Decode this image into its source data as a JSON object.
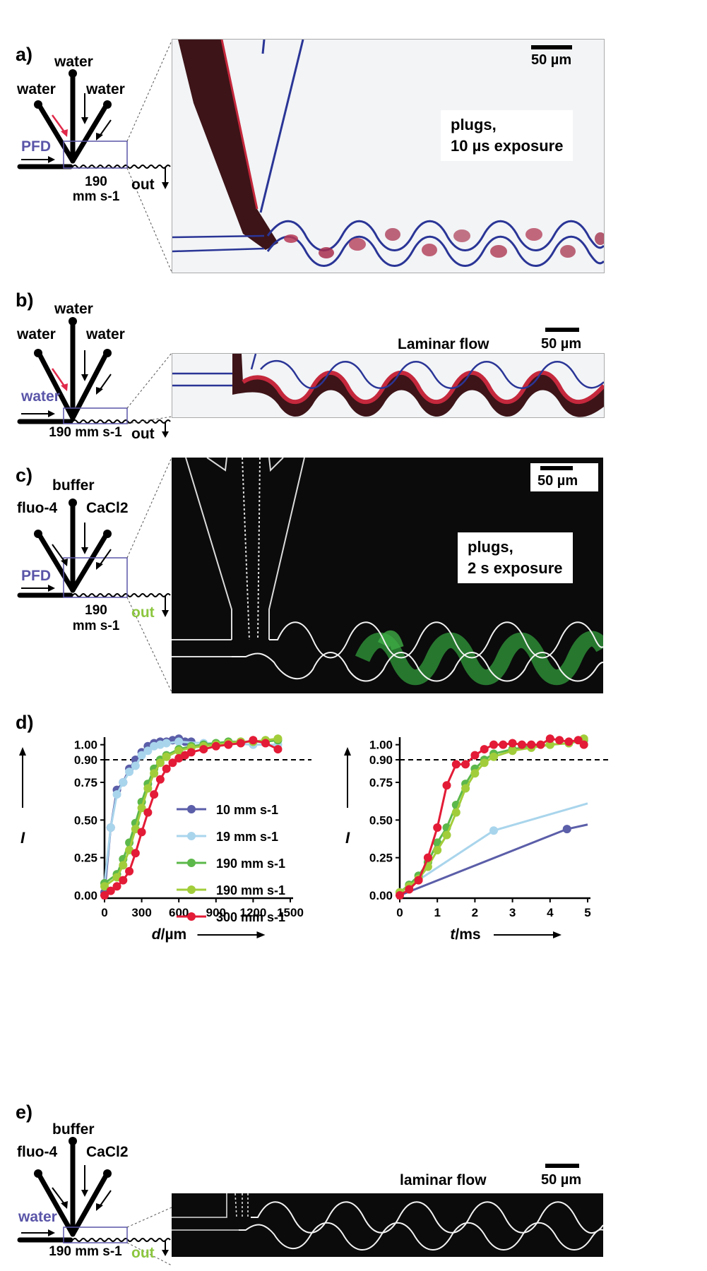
{
  "panels": {
    "a": {
      "letter": "a)",
      "top_inlet": "water",
      "left_inlet": "water",
      "right_inlet": "water",
      "carrier": "PFD",
      "speed_line1": "190",
      "speed_line2": "mm s-1",
      "outlet": "out",
      "scale": "50 µm",
      "note_line1": "plugs,",
      "note_line2": "10 µs exposure"
    },
    "b": {
      "letter": "b)",
      "top_inlet": "water",
      "left_inlet": "water",
      "right_inlet": "water",
      "carrier": "water",
      "speed": "190 mm s-1",
      "outlet": "out",
      "title": "Laminar flow",
      "scale": "50 µm"
    },
    "c": {
      "letter": "c)",
      "top_inlet": "buffer",
      "left_inlet": "fluo-4",
      "right_inlet": "CaCl2",
      "carrier": "PFD",
      "speed_line1": "190",
      "speed_line2": "mm s-1",
      "outlet": "out",
      "scale": "50 µm",
      "note_line1": "plugs,",
      "note_line2": "2 s exposure"
    },
    "d": {
      "letter": "d)"
    },
    "e": {
      "letter": "e)",
      "top_inlet": "buffer",
      "left_inlet": "fluo-4",
      "right_inlet": "CaCl2",
      "carrier": "water",
      "speed": "190 mm s-1",
      "outlet": "out",
      "title": "laminar flow",
      "scale": "50 µm"
    }
  },
  "colors": {
    "carrier_label": "#5a55a8",
    "out_green": "#8cc63f",
    "s10": "#5b5ea8",
    "s19": "#a9d5ec",
    "s190a": "#5cb84a",
    "s190b": "#a2cd3a",
    "s300": "#e31b36",
    "inlet_arrow_red": "#e0294a"
  },
  "chart_data": [
    {
      "type": "line",
      "title": "",
      "xlabel": "d/µm",
      "ylabel": "I",
      "xlim": [
        0,
        1500
      ],
      "ylim": [
        0,
        1.05
      ],
      "xticks": [
        "0",
        "300",
        "600",
        "900",
        "1200",
        "1500"
      ],
      "yticks": [
        "0.00",
        "0.25",
        "0.50",
        "0.75",
        "0.90",
        "1.00"
      ],
      "reference_line": 0.9,
      "legend_position": "center-right",
      "series": [
        {
          "name": "10 mm s-1",
          "color": "#5b5ea8",
          "x": [
            0,
            50,
            100,
            150,
            200,
            250,
            300,
            350,
            400,
            450,
            500,
            550,
            600,
            650,
            700
          ],
          "y": [
            0.02,
            0.45,
            0.7,
            0.75,
            0.84,
            0.9,
            0.95,
            0.99,
            1.01,
            1.02,
            1.02,
            1.03,
            1.04,
            1.02,
            1.02
          ]
        },
        {
          "name": "19 mm s-1",
          "color": "#a9d5ec",
          "x": [
            0,
            50,
            100,
            150,
            200,
            250,
            300,
            350,
            400,
            450,
            500,
            600,
            800,
            1000,
            1200,
            1400
          ],
          "y": [
            0.08,
            0.45,
            0.67,
            0.75,
            0.82,
            0.86,
            0.93,
            0.96,
            0.99,
            1.0,
            1.01,
            1.02,
            1.01,
            1.01,
            1.0,
            1.0
          ]
        },
        {
          "name": "190 mm s-1",
          "color": "#5cb84a",
          "x": [
            0,
            100,
            150,
            200,
            250,
            300,
            350,
            400,
            450,
            500,
            600,
            700,
            800,
            900,
            1000,
            1100,
            1200,
            1300,
            1400
          ],
          "y": [
            0.08,
            0.14,
            0.24,
            0.35,
            0.48,
            0.62,
            0.74,
            0.84,
            0.9,
            0.93,
            0.97,
            0.99,
            1.0,
            1.01,
            1.02,
            1.02,
            1.02,
            1.02,
            1.03
          ]
        },
        {
          "name": "190 mm s-1",
          "color": "#a2cd3a",
          "x": [
            0,
            100,
            150,
            200,
            250,
            300,
            350,
            400,
            450,
            500,
            600,
            700,
            800,
            900,
            1000,
            1100,
            1200,
            1300,
            1400
          ],
          "y": [
            0.06,
            0.12,
            0.2,
            0.3,
            0.44,
            0.58,
            0.71,
            0.81,
            0.88,
            0.92,
            0.96,
            0.98,
            0.99,
            1.0,
            1.01,
            1.02,
            1.02,
            1.03,
            1.04
          ]
        },
        {
          "name": "300 mm s-1",
          "color": "#e31b36",
          "x": [
            0,
            50,
            100,
            150,
            200,
            250,
            300,
            350,
            400,
            450,
            500,
            550,
            600,
            650,
            700,
            800,
            900,
            1000,
            1100,
            1200,
            1300,
            1400
          ],
          "y": [
            0.0,
            0.03,
            0.06,
            0.1,
            0.16,
            0.28,
            0.42,
            0.55,
            0.67,
            0.77,
            0.84,
            0.88,
            0.91,
            0.93,
            0.95,
            0.97,
            0.99,
            1.0,
            1.01,
            1.03,
            1.01,
            0.97
          ]
        }
      ]
    },
    {
      "type": "line",
      "title": "",
      "xlabel": "t/ms",
      "ylabel": "I",
      "xlim": [
        0,
        5
      ],
      "ylim": [
        0,
        1.05
      ],
      "xticks": [
        "0",
        "1",
        "2",
        "3",
        "4",
        "5"
      ],
      "yticks": [
        "0.00",
        "0.25",
        "0.50",
        "0.75",
        "0.90",
        "1.00"
      ],
      "reference_line": 0.9,
      "series": [
        {
          "name": "10 mm s-1",
          "color": "#5b5ea8",
          "x": [
            0,
            4.45,
            5.0
          ],
          "y": [
            0.0,
            0.44,
            0.47
          ]
        },
        {
          "name": "19 mm s-1",
          "color": "#a9d5ec",
          "x": [
            0,
            2.5,
            5.0
          ],
          "y": [
            0.02,
            0.43,
            0.61
          ]
        },
        {
          "name": "190 mm s-1",
          "color": "#5cb84a",
          "x": [
            0,
            0.25,
            0.5,
            0.75,
            1.0,
            1.25,
            1.5,
            1.75,
            2.0,
            2.25,
            2.5,
            3.0,
            3.5,
            4.0,
            4.5,
            4.9
          ],
          "y": [
            0.02,
            0.07,
            0.13,
            0.22,
            0.35,
            0.45,
            0.6,
            0.74,
            0.84,
            0.9,
            0.94,
            0.97,
            0.99,
            1.0,
            1.01,
            1.03
          ]
        },
        {
          "name": "190 mm s-1",
          "color": "#a2cd3a",
          "x": [
            0,
            0.25,
            0.5,
            0.75,
            1.0,
            1.25,
            1.5,
            1.75,
            2.0,
            2.25,
            2.5,
            3.0,
            3.5,
            4.0,
            4.5,
            4.9
          ],
          "y": [
            0.02,
            0.06,
            0.11,
            0.19,
            0.3,
            0.4,
            0.55,
            0.71,
            0.81,
            0.88,
            0.92,
            0.96,
            0.98,
            1.0,
            1.01,
            1.04
          ]
        },
        {
          "name": "300 mm s-1",
          "color": "#e31b36",
          "x": [
            0,
            0.25,
            0.5,
            0.75,
            1.0,
            1.25,
            1.5,
            1.75,
            2.0,
            2.25,
            2.5,
            2.75,
            3.0,
            3.25,
            3.5,
            3.75,
            4.0,
            4.25,
            4.5,
            4.75,
            4.9
          ],
          "y": [
            0.0,
            0.04,
            0.1,
            0.25,
            0.45,
            0.73,
            0.87,
            0.87,
            0.93,
            0.97,
            1.0,
            1.0,
            1.01,
            1.0,
            1.0,
            1.0,
            1.04,
            1.03,
            1.02,
            1.03,
            1.0
          ]
        }
      ]
    }
  ]
}
